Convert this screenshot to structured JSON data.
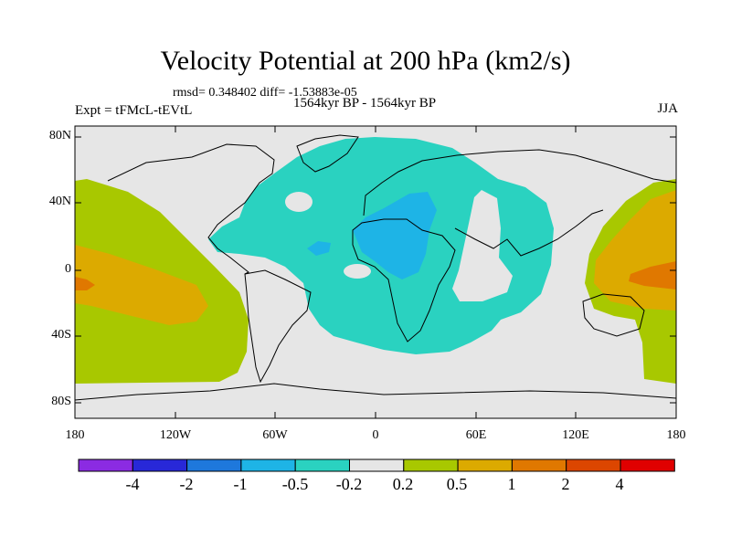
{
  "title": "Velocity Potential at 200 hPa (km2/s)",
  "stats": "rmsd= 0.348402 diff= -1.53883e-05",
  "experiment": "Expt = tFMcL-tEVtL",
  "period": "1564kyr BP - 1564kyr BP",
  "season": "JJA",
  "lat_labels": [
    "80N",
    "40N",
    "0",
    "40S",
    "80S"
  ],
  "lon_labels": [
    "180",
    "120W",
    "60W",
    "0",
    "60E",
    "120E",
    "180"
  ],
  "colorbar": {
    "colors": [
      "#8b2be2",
      "#2828d8",
      "#1e78dc",
      "#1eb4e6",
      "#2ad2c0",
      "#e6e6e6",
      "#a8c800",
      "#dcaa00",
      "#e07800",
      "#dc4600",
      "#e00000"
    ],
    "labels": [
      "-4",
      "-2",
      "-1",
      "-0.5",
      "-0.2",
      "0.2",
      "0.5",
      "1",
      "2",
      "4"
    ]
  }
}
